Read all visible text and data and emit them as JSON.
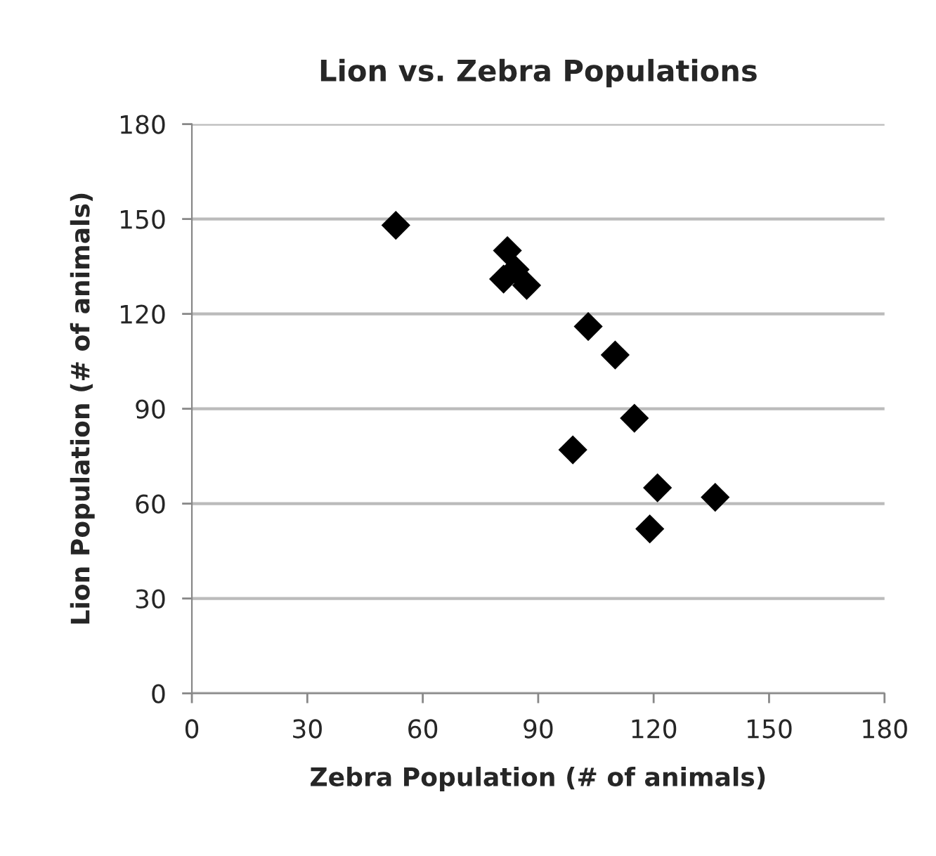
{
  "chart_data": {
    "type": "scatter",
    "title": "Lion vs. Zebra Populations",
    "xlabel": "Zebra Population (# of animals)",
    "ylabel": "Lion Population (# of animals)",
    "x": [
      53,
      82,
      81,
      84,
      87,
      103,
      110,
      115,
      99,
      121,
      136,
      119
    ],
    "series": [
      {
        "color": "#000000",
        "values": [
          148,
          140,
          131,
          134,
          129,
          116,
          107,
          87,
          77,
          65,
          62,
          52
        ]
      }
    ],
    "xlim": [
      0,
      180
    ],
    "xticks": [
      0,
      30,
      60,
      90,
      120,
      150,
      180
    ],
    "ylim": [
      0,
      180
    ],
    "yticks": [
      0,
      30,
      60,
      90,
      120,
      150,
      180
    ],
    "grid": "y",
    "marker": "diamond"
  }
}
